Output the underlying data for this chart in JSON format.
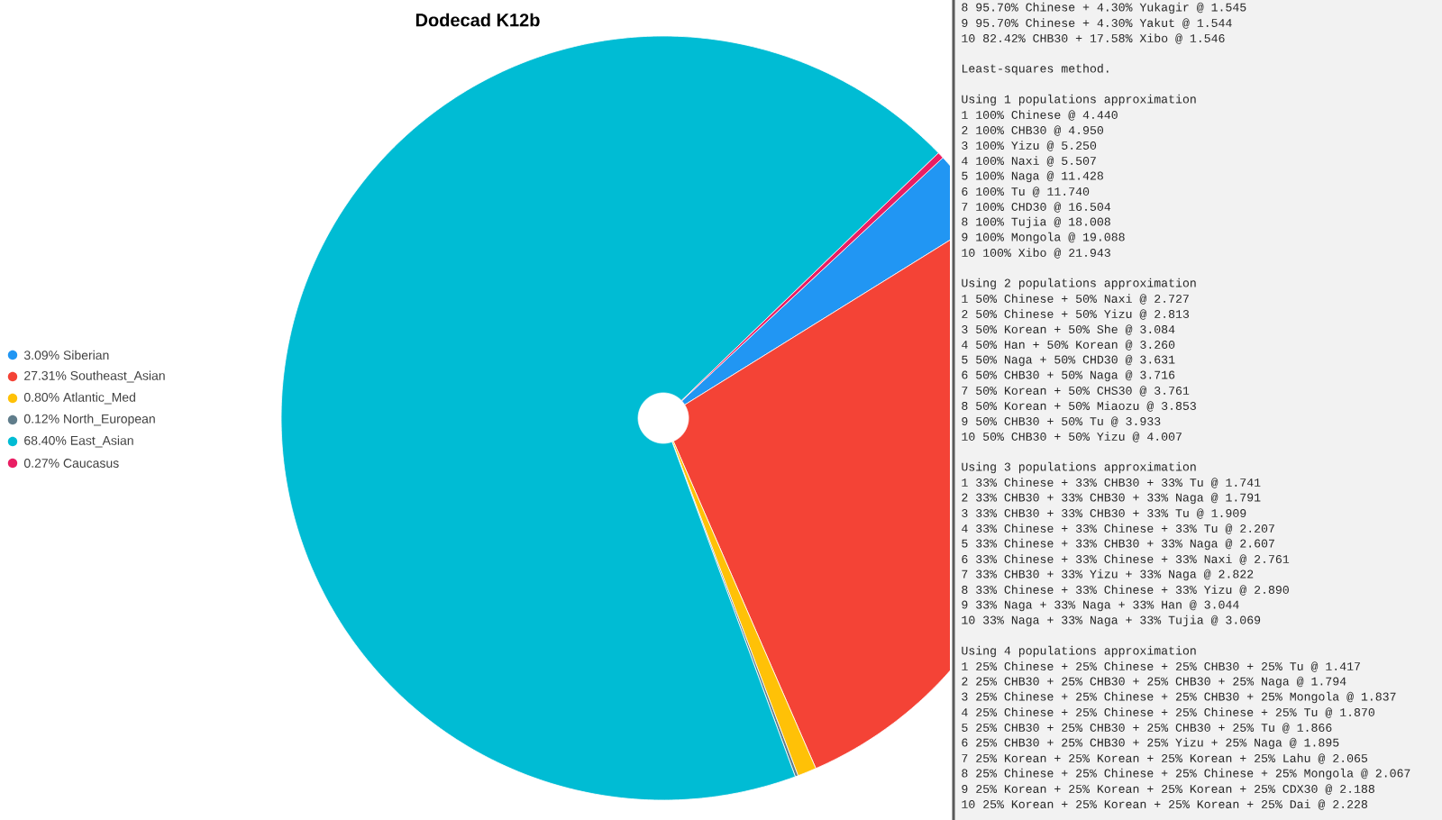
{
  "chart_data": [
    {
      "type": "pie",
      "title": "Dodecad K12b",
      "categories": [
        "3.09% Siberian",
        "27.31% Southeast_Asian",
        "0.80% Atlantic_Med",
        "0.12% North_European",
        "68.40% East_Asian",
        "0.27% Caucasus"
      ],
      "values": [
        3.09,
        27.31,
        0.8,
        0.12,
        68.4,
        0.27
      ],
      "colors": [
        "#2196f3",
        "#f44336",
        "#ffc107",
        "#607d8b",
        "#00bcd4",
        "#e91e63"
      ],
      "legend": "left"
    },
    {
      "type": "other",
      "annotations": [
        "8 95.70% Chinese + 4.30% Yukagir @ 1.545",
        "9 95.70% Chinese + 4.30% Yakut @ 1.544",
        "10 82.42% CHB30 + 17.58% Xibo @ 1.546",
        "Least-squares method.",
        "Using 1 populations approximation",
        "1 100% Chinese  @ 4.440",
        "2 100% CHB30  @ 4.950",
        "3 100% Yizu  @ 5.250",
        "4 100% Naxi  @ 5.507",
        "5 100% Naga  @ 11.428",
        "6 100% Tu  @ 11.740",
        "7 100% CHD30  @ 16.504",
        "8 100% Tujia  @ 18.008",
        "9 100% Mongola  @ 19.088",
        "10 100% Xibo  @ 21.943",
        "Using 2 populations approximation",
        "1 50% Chinese + 50% Naxi  @ 2.727",
        "2 50% Chinese + 50% Yizu  @ 2.813",
        "3 50% Korean + 50% She  @ 3.084",
        "4 50% Han + 50% Korean  @ 3.260",
        "5 50% Naga + 50% CHD30  @ 3.631",
        "6 50% CHB30 + 50% Naga  @ 3.716",
        "7 50% Korean + 50% CHS30  @ 3.761",
        "8 50% Korean + 50% Miaozu  @ 3.853",
        "9 50% CHB30 + 50% Tu  @ 3.933",
        "10 50% CHB30 + 50% Yizu  @ 4.007",
        "Using 3 populations approximation",
        "1 33% Chinese + 33% CHB30 + 33% Tu  @ 1.741",
        "2 33% CHB30 + 33% CHB30 + 33% Naga  @ 1.791",
        "3 33% CHB30 + 33% CHB30 + 33% Tu  @ 1.909",
        "4 33% Chinese + 33% Chinese + 33% Tu  @ 2.207",
        "5 33% Chinese + 33% CHB30 + 33% Naga  @ 2.607",
        "6 33% Chinese + 33% Chinese + 33% Naxi  @ 2.761",
        "7 33% CHB30 + 33% Yizu + 33% Naga  @ 2.822",
        "8 33% Chinese + 33% Chinese + 33% Yizu  @ 2.890",
        "9 33% Naga + 33% Naga + 33% Han  @ 3.044",
        "10 33% Naga + 33% Naga + 33% Tujia  @ 3.069",
        "Using 4 populations approximation",
        "1 25% Chinese + 25% Chinese + 25% CHB30 + 25% Tu  @ 1.417",
        "2 25% CHB30 + 25% CHB30 + 25% CHB30 + 25% Naga  @ 1.794",
        "3 25% Chinese + 25% Chinese + 25% CHB30 + 25% Mongola  @ 1.837",
        "4 25% Chinese + 25% Chinese + 25% Chinese + 25% Tu  @ 1.870",
        "5 25% CHB30 + 25% CHB30 + 25% CHB30 + 25% Tu  @ 1.866",
        "6 25% CHB30 + 25% CHB30 + 25% Yizu + 25% Naga  @ 1.895",
        "7 25% Korean + 25% Korean + 25% Korean + 25% Lahu  @ 2.065",
        "8 25% Chinese + 25% Chinese + 25% Chinese + 25% Mongola  @ 2.067",
        "9 25% Korean + 25% Korean + 25% Korean + 25% CDX30  @ 2.188",
        "10 25% Korean + 25% Korean + 25% Korean + 25% Dai  @ 2.228"
      ]
    }
  ]
}
